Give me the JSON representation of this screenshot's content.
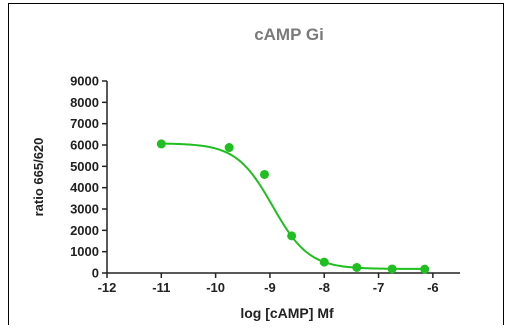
{
  "chart_data": {
    "type": "scatter",
    "title": "cAMP Gi",
    "xlabel": "log [cAMP] Mf",
    "ylabel": "ratio 665/620",
    "xlim": [
      -12,
      -5.5
    ],
    "ylim": [
      0,
      9000
    ],
    "xticks": [
      -12,
      -11,
      -10,
      -9,
      -8,
      -7,
      -6
    ],
    "yticks": [
      0,
      1000,
      2000,
      3000,
      4000,
      5000,
      6000,
      7000,
      8000,
      9000
    ],
    "grid": false,
    "series": [
      {
        "x": [
          -11,
          -9.75,
          -9.1,
          -8.6,
          -8,
          -7.4,
          -6.75,
          -6.15
        ],
        "y": [
          6050,
          5880,
          4620,
          1740,
          510,
          260,
          190,
          180
        ],
        "color": "#1fbf1f",
        "fit": {
          "model": "four-parameter-logistic",
          "top": 6080,
          "bottom": 190,
          "logIC50": -8.95,
          "hillSlope": -1.3,
          "x_range": [
            -11,
            -6.15
          ]
        }
      }
    ]
  }
}
